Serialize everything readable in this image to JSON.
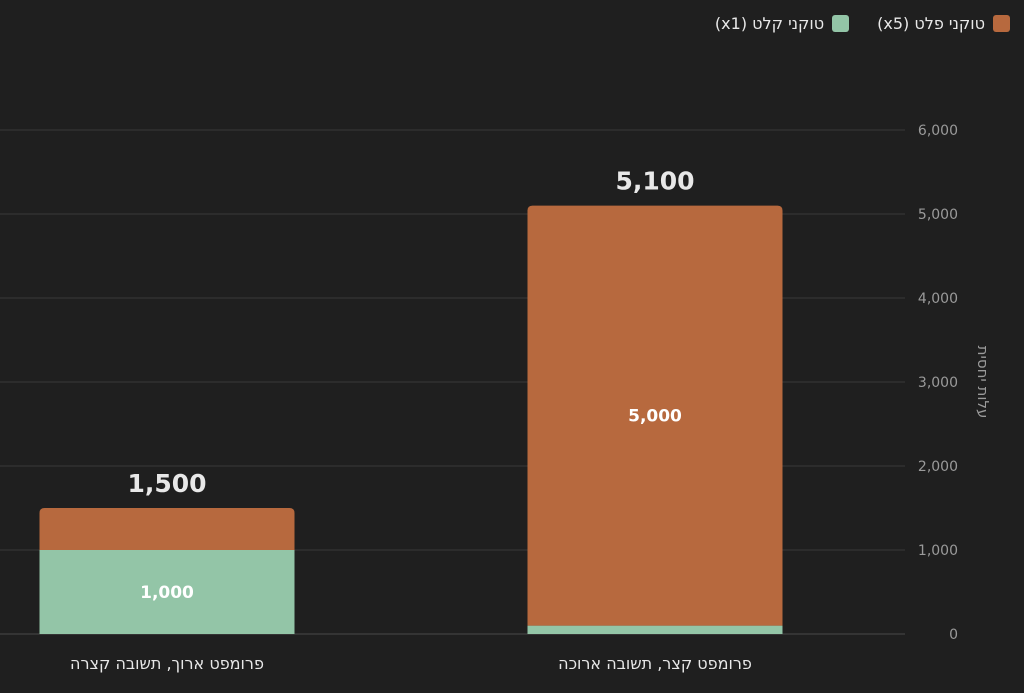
{
  "chart_data": {
    "type": "bar",
    "stacked": true,
    "categories": [
      "פרומפט קצר, תשובה ארוכה",
      "פרומפט ארוך, תשובה קצרה"
    ],
    "series": [
      {
        "name": "טוקני קלט (x1)",
        "values": [
          100,
          1000
        ],
        "color": "#93c5a7",
        "labels": [
          "",
          "1,000"
        ]
      },
      {
        "name": "טוקני פלט (x5)",
        "values": [
          5000,
          500
        ],
        "color": "#b7693e",
        "labels": [
          "5,000",
          ""
        ]
      }
    ],
    "totals": [
      "5,100",
      "1,500"
    ],
    "ylabel": "עלות יחסית",
    "ylim": [
      0,
      6000
    ],
    "yticks": [
      0,
      1000,
      2000,
      3000,
      4000,
      5000,
      6000
    ],
    "ytick_labels": [
      "0",
      "1,000",
      "2,000",
      "3,000",
      "4,000",
      "5,000",
      "6,000"
    ],
    "y_axis_side": "right",
    "legend_position": "top-right",
    "grid": true
  },
  "legend": [
    {
      "label": "טוקני קלט (x1)",
      "color": "#93c5a7"
    },
    {
      "label": "טוקני פלט (x5)",
      "color": "#b7693e"
    }
  ]
}
